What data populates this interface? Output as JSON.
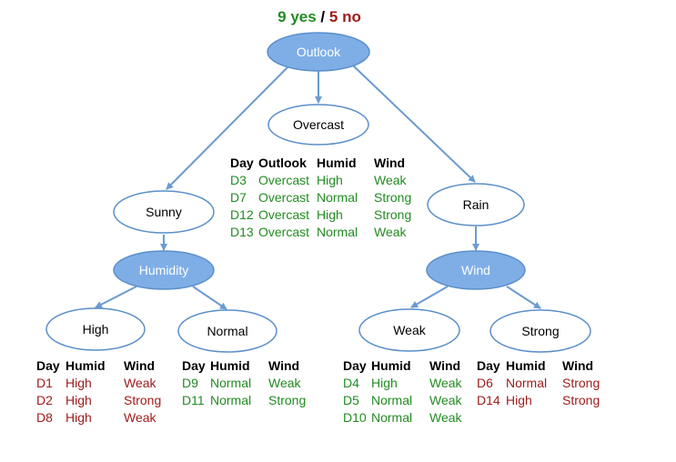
{
  "header": {
    "yes_count": "9 yes",
    "separator": "/",
    "no_count": "5 no"
  },
  "colors": {
    "positive": "#228b22",
    "negative": "#a01c1c",
    "decision_fill": "#7faee6",
    "branch_stroke": "#5a8fc9",
    "edge": "#6b9bd1"
  },
  "nodes": {
    "outlook": "Outlook",
    "overcast": "Overcast",
    "sunny": "Sunny",
    "rain": "Rain",
    "humidity": "Humidity",
    "wind": "Wind",
    "high": "High",
    "normal": "Normal",
    "weak": "Weak",
    "strong": "Strong"
  },
  "tables": {
    "overcast": {
      "headers": [
        "Day",
        "Outlook",
        "Humid",
        "Wind"
      ],
      "rows": [
        [
          "D3",
          "Overcast",
          "High",
          "Weak"
        ],
        [
          "D7",
          "Overcast",
          "Normal",
          "Strong"
        ],
        [
          "D12",
          "Overcast",
          "High",
          "Strong"
        ],
        [
          "D13",
          "Overcast",
          "Normal",
          "Weak"
        ]
      ]
    },
    "high": {
      "headers": [
        "Day",
        "Humid",
        "Wind"
      ],
      "rows": [
        [
          "D1",
          "High",
          "Weak"
        ],
        [
          "D2",
          "High",
          "Strong"
        ],
        [
          "D8",
          "High",
          "Weak"
        ]
      ]
    },
    "normal": {
      "headers": [
        "Day",
        "Humid",
        "Wind"
      ],
      "rows": [
        [
          "D9",
          "Normal",
          "Weak"
        ],
        [
          "D11",
          "Normal",
          "Strong"
        ]
      ]
    },
    "weak": {
      "headers": [
        "Day",
        "Humid",
        "Wind"
      ],
      "rows": [
        [
          "D4",
          "High",
          "Weak"
        ],
        [
          "D5",
          "Normal",
          "Weak"
        ],
        [
          "D10",
          "Normal",
          "Weak"
        ]
      ]
    },
    "strong": {
      "headers": [
        "Day",
        "Humid",
        "Wind"
      ],
      "rows": [
        [
          "D6",
          "Normal",
          "Strong"
        ],
        [
          "D14",
          "High",
          "Strong"
        ]
      ]
    }
  }
}
